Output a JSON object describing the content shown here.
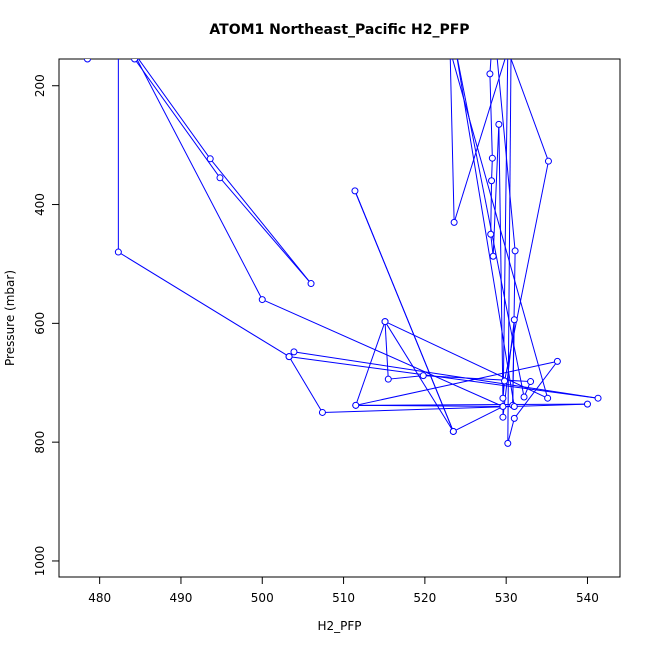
{
  "chart_data": {
    "type": "line",
    "title": "ATOM1 Northeast_Pacific H2_PFP",
    "xlabel": "H2_PFP",
    "ylabel": "Pressure (mbar)",
    "xlim": [
      475,
      544
    ],
    "ylim": [
      1027,
      155
    ],
    "y_reversed": true,
    "x_ticks": [
      480,
      490,
      500,
      510,
      520,
      530,
      540
    ],
    "y_ticks": [
      200,
      400,
      600,
      800,
      1000
    ],
    "grid": false,
    "legend": "none",
    "series": [
      {
        "color": "#0000ff",
        "points": [
          {
            "x": 478.5,
            "y": 155
          },
          {
            "x": 482.3,
            "y": 125
          },
          {
            "x": 482.3,
            "y": 480
          },
          {
            "x": 503.3,
            "y": 656
          },
          {
            "x": 503.9,
            "y": 648
          },
          {
            "x": 541.3,
            "y": 726
          },
          {
            "x": 503.3,
            "y": 656
          },
          {
            "x": 507.4,
            "y": 750
          },
          {
            "x": 540.0,
            "y": 736
          },
          {
            "x": 511.5,
            "y": 738
          },
          {
            "x": 536.3,
            "y": 664
          },
          {
            "x": 531.0,
            "y": 760
          },
          {
            "x": 530.2,
            "y": 802
          },
          {
            "x": 530.6,
            "y": 140
          },
          {
            "x": 530.2,
            "y": 140
          },
          {
            "x": 529.6,
            "y": 758
          },
          {
            "x": 531.0,
            "y": 594
          },
          {
            "x": 530.8,
            "y": 738
          },
          {
            "x": 531.1,
            "y": 478
          },
          {
            "x": 528.8,
            "y": 140
          },
          {
            "x": 528.2,
            "y": 140
          },
          {
            "x": 528.0,
            "y": 180
          },
          {
            "x": 528.3,
            "y": 322
          },
          {
            "x": 528.2,
            "y": 360
          },
          {
            "x": 528.1,
            "y": 450
          },
          {
            "x": 528.4,
            "y": 487
          },
          {
            "x": 529.1,
            "y": 265
          },
          {
            "x": 529.6,
            "y": 726
          },
          {
            "x": 529.8,
            "y": 697
          },
          {
            "x": 535.2,
            "y": 327
          },
          {
            "x": 530.2,
            "y": 140
          },
          {
            "x": 523.6,
            "y": 430
          },
          {
            "x": 523.1,
            "y": 140
          },
          {
            "x": 535.1,
            "y": 726
          },
          {
            "x": 515.1,
            "y": 597
          },
          {
            "x": 511.5,
            "y": 738
          },
          {
            "x": 531.0,
            "y": 740
          },
          {
            "x": 523.8,
            "y": 140
          },
          {
            "x": 532.2,
            "y": 724
          },
          {
            "x": 533.0,
            "y": 698
          },
          {
            "x": 519.8,
            "y": 688
          },
          {
            "x": 515.5,
            "y": 694
          },
          {
            "x": 515.1,
            "y": 597
          },
          {
            "x": 523.5,
            "y": 782
          },
          {
            "x": 511.4,
            "y": 377
          },
          {
            "x": 523.5,
            "y": 782
          },
          {
            "x": 529.6,
            "y": 740
          },
          {
            "x": 500.0,
            "y": 560
          },
          {
            "x": 484.0,
            "y": 140
          },
          {
            "x": 484.0,
            "y": 140
          },
          {
            "x": 493.6,
            "y": 323
          },
          {
            "x": 506.0,
            "y": 533
          },
          {
            "x": 494.8,
            "y": 355
          },
          {
            "x": 484.3,
            "y": 155
          }
        ]
      }
    ]
  }
}
